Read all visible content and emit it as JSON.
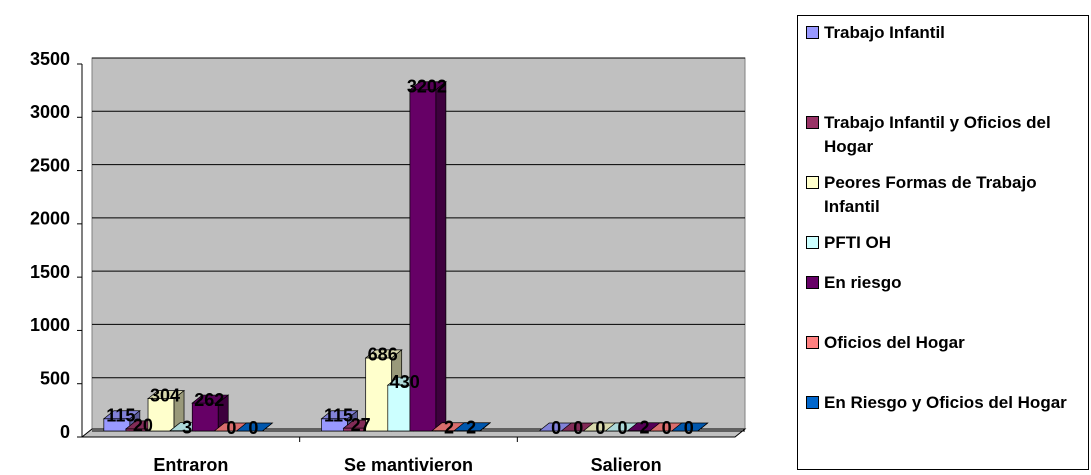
{
  "chart_data": {
    "type": "bar3d",
    "categories": [
      "Entraron",
      "Se mantivieron",
      "Salieron"
    ],
    "series": [
      {
        "name": "Trabajo Infantil",
        "color": "#9999ff",
        "values": [
          115,
          115,
          0
        ]
      },
      {
        "name": "Trabajo Infantil y Oficios del Hogar",
        "color": "#993366",
        "values": [
          20,
          27,
          0
        ]
      },
      {
        "name": "Peores Formas de Trabajo Infantil",
        "color": "#ffffcc",
        "values": [
          304,
          686,
          0
        ]
      },
      {
        "name": "PFTI OH",
        "color": "#ccffff",
        "values": [
          3,
          430,
          0
        ]
      },
      {
        "name": "En riesgo",
        "color": "#660066",
        "values": [
          262,
          3202,
          2
        ]
      },
      {
        "name": "Oficios del Hogar",
        "color": "#ff8080",
        "values": [
          0,
          2,
          0
        ]
      },
      {
        "name": "En Riesgo y Oficios del Hogar",
        "color": "#0066cc",
        "values": [
          0,
          2,
          0
        ]
      }
    ],
    "ylim": [
      0,
      3500
    ],
    "yticks": [
      0,
      500,
      1000,
      1500,
      2000,
      2500,
      3000,
      3500
    ],
    "grid": true,
    "legend": "right"
  }
}
